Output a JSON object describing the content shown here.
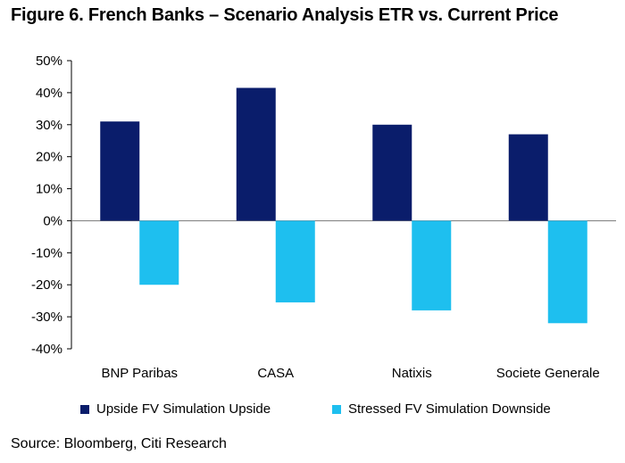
{
  "title": "Figure 6. French Banks – Scenario Analysis ETR vs. Current Price",
  "source": "Source: Bloomberg, Citi Research",
  "colors": {
    "upside": "#0a1d6b",
    "downside": "#1ebfef",
    "axis": "#000000",
    "zero_line": "#7f7f7f"
  },
  "chart_data": {
    "type": "bar",
    "title": "Figure 6. French Banks – Scenario Analysis ETR vs. Current Price",
    "xlabel": "",
    "ylabel": "",
    "categories": [
      "BNP Paribas",
      "CASA",
      "Natixis",
      "Societe Generale"
    ],
    "series": [
      {
        "name": "Upside FV Simulation Upside",
        "values": [
          31,
          41.5,
          30,
          27
        ]
      },
      {
        "name": "Stressed FV Simulation Downside",
        "values": [
          -20,
          -25.5,
          -28,
          -32
        ]
      }
    ],
    "ylim": [
      -40,
      50
    ],
    "yticks": [
      -40,
      -30,
      -20,
      -10,
      0,
      10,
      20,
      30,
      40,
      50
    ],
    "ytick_labels": [
      "-40%",
      "-30%",
      "-20%",
      "-10%",
      "0%",
      "10%",
      "20%",
      "30%",
      "40%",
      "50%"
    ],
    "grid": false,
    "legend_position": "bottom"
  }
}
